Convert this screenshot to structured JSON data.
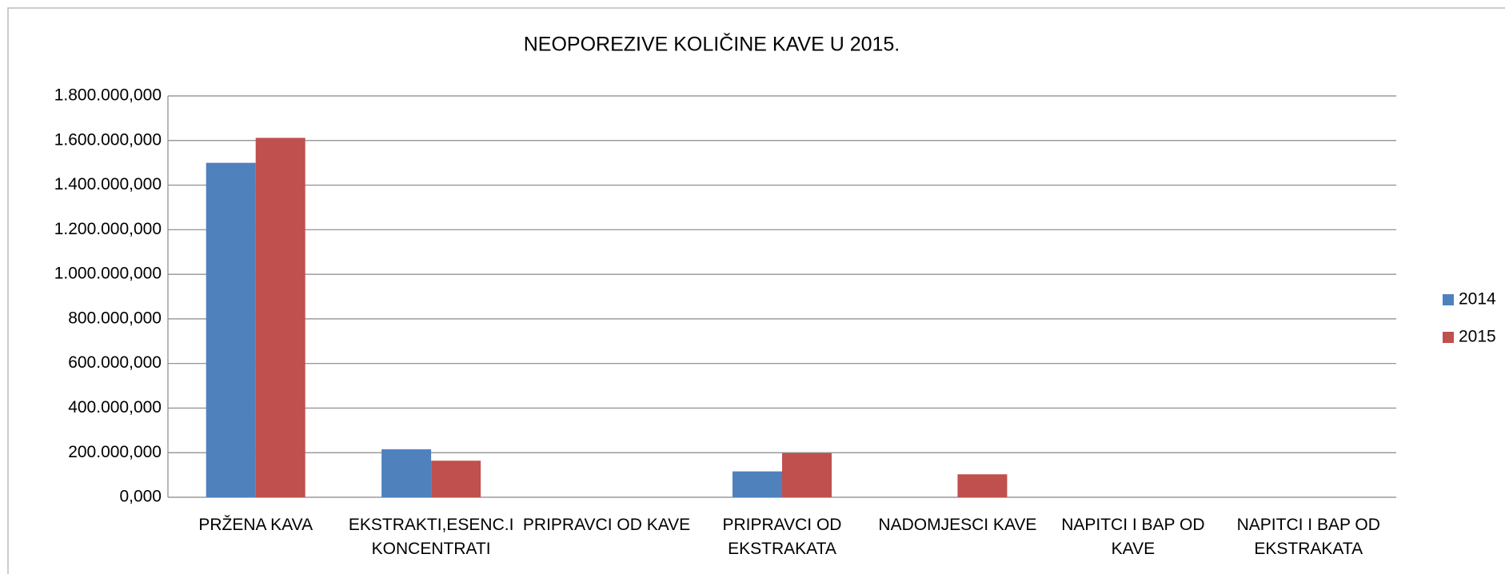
{
  "chart_data": {
    "type": "bar",
    "title": "NEOPOREZIVE KOLIČINE KAVE  U 2015.",
    "categories": [
      "PRŽENA KAVA",
      "EKSTRAKTI,ESENC.I KONCENTRATI",
      "PRIPRAVCI OD KAVE",
      "PRIPRAVCI OD EKSTRAKATA",
      "NADOMJESCI KAVE",
      "NAPITCI I BAP OD KAVE",
      "NAPITCI I BAP OD EKSTRAKATA"
    ],
    "series": [
      {
        "name": "2014",
        "color": "#4f81bd",
        "values": [
          1500000000,
          215000000,
          0,
          116000000,
          0,
          0,
          0
        ]
      },
      {
        "name": "2015",
        "color": "#c0504d",
        "values": [
          1612000000,
          164000000,
          0,
          198000000,
          103000000,
          0,
          0
        ]
      }
    ],
    "ylim": [
      0,
      1800000000
    ],
    "yticks": [
      {
        "value": 0,
        "label": "0,000"
      },
      {
        "value": 200000000,
        "label": "200.000,000"
      },
      {
        "value": 400000000,
        "label": "400.000,000"
      },
      {
        "value": 600000000,
        "label": "600.000,000"
      },
      {
        "value": 800000000,
        "label": "800.000,000"
      },
      {
        "value": 1000000000,
        "label": "1.000.000,000"
      },
      {
        "value": 1200000000,
        "label": "1.200.000,000"
      },
      {
        "value": 1400000000,
        "label": "1.400.000,000"
      },
      {
        "value": 1600000000,
        "label": "1.600.000,000"
      },
      {
        "value": 1800000000,
        "label": "1.800.000,000"
      }
    ],
    "grid": true,
    "legend": "right"
  }
}
